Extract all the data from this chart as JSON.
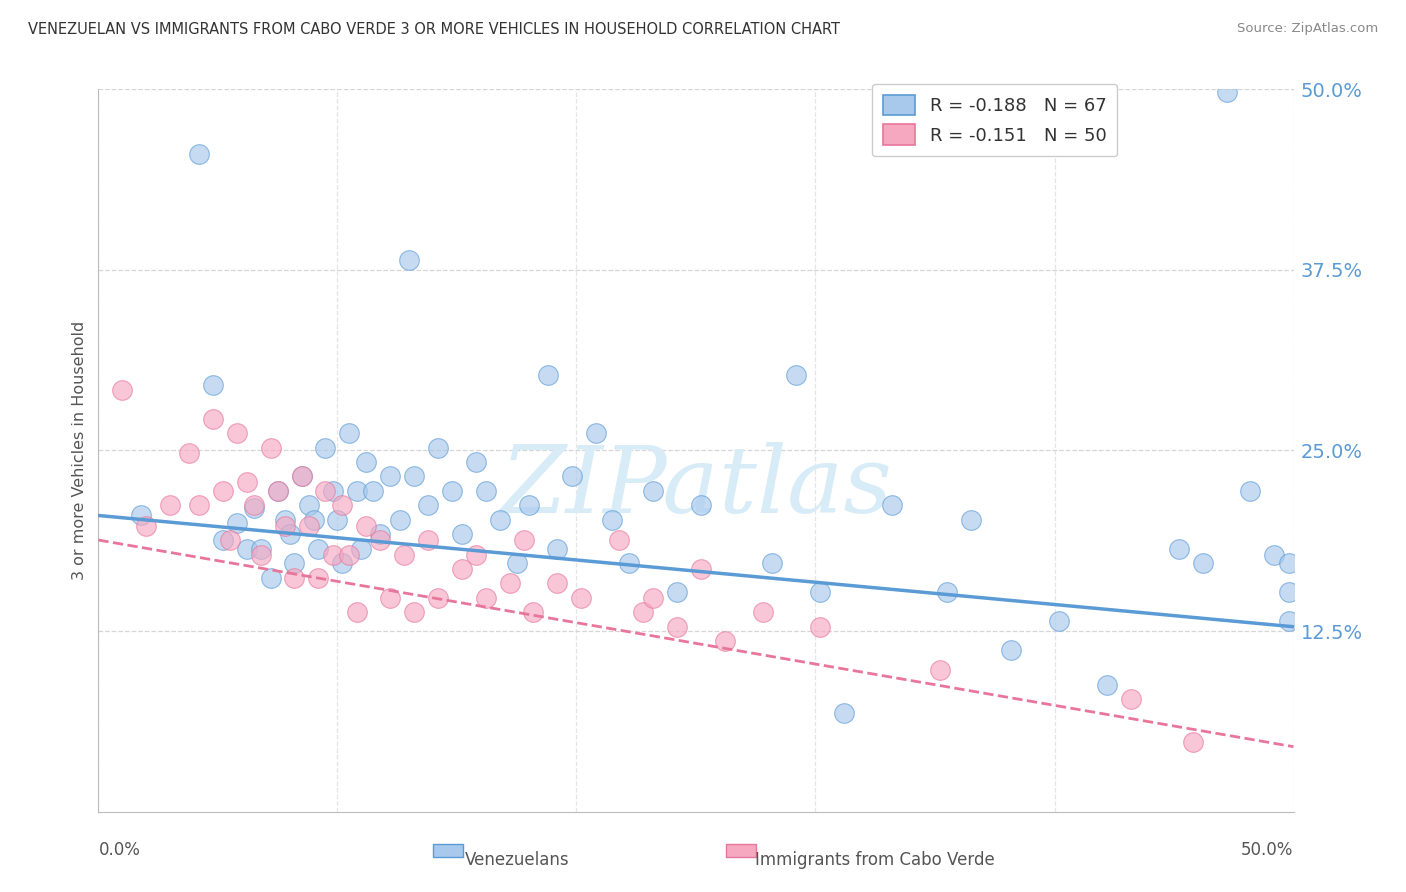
{
  "title": "VENEZUELAN VS IMMIGRANTS FROM CABO VERDE 3 OR MORE VEHICLES IN HOUSEHOLD CORRELATION CHART",
  "source": "Source: ZipAtlas.com",
  "ylabel": "3 or more Vehicles in Household",
  "legend_label1": "Venezuelans",
  "legend_label2": "Immigrants from Cabo Verde",
  "r1": -0.188,
  "n1": 67,
  "r2": -0.151,
  "n2": 50,
  "xmin": 0.0,
  "xmax": 0.5,
  "ymin": 0.0,
  "ymax": 0.5,
  "ytick_vals": [
    0.125,
    0.25,
    0.375,
    0.5
  ],
  "ytick_labels": [
    "12.5%",
    "25.0%",
    "37.5%",
    "50.0%"
  ],
  "color_blue": "#A8C8EC",
  "color_pink": "#F5A8C0",
  "line_blue": "#5B9BD5",
  "line_pink": "#E8769A",
  "watermark_color": "#D8ECF8",
  "blue_x": [
    0.018,
    0.042,
    0.048,
    0.052,
    0.058,
    0.062,
    0.065,
    0.068,
    0.072,
    0.075,
    0.078,
    0.08,
    0.082,
    0.085,
    0.088,
    0.09,
    0.092,
    0.095,
    0.098,
    0.1,
    0.102,
    0.105,
    0.108,
    0.11,
    0.112,
    0.115,
    0.118,
    0.122,
    0.126,
    0.13,
    0.132,
    0.138,
    0.142,
    0.148,
    0.152,
    0.158,
    0.162,
    0.168,
    0.175,
    0.18,
    0.188,
    0.192,
    0.198,
    0.208,
    0.215,
    0.222,
    0.232,
    0.242,
    0.252,
    0.282,
    0.292,
    0.302,
    0.312,
    0.332,
    0.355,
    0.365,
    0.382,
    0.402,
    0.422,
    0.452,
    0.462,
    0.472,
    0.482,
    0.492,
    0.498,
    0.498,
    0.498
  ],
  "blue_y": [
    0.205,
    0.455,
    0.295,
    0.188,
    0.2,
    0.182,
    0.21,
    0.182,
    0.162,
    0.222,
    0.202,
    0.192,
    0.172,
    0.232,
    0.212,
    0.202,
    0.182,
    0.252,
    0.222,
    0.202,
    0.172,
    0.262,
    0.222,
    0.182,
    0.242,
    0.222,
    0.192,
    0.232,
    0.202,
    0.382,
    0.232,
    0.212,
    0.252,
    0.222,
    0.192,
    0.242,
    0.222,
    0.202,
    0.172,
    0.212,
    0.302,
    0.182,
    0.232,
    0.262,
    0.202,
    0.172,
    0.222,
    0.152,
    0.212,
    0.172,
    0.302,
    0.152,
    0.068,
    0.212,
    0.152,
    0.202,
    0.112,
    0.132,
    0.088,
    0.182,
    0.172,
    0.498,
    0.222,
    0.178,
    0.152,
    0.172,
    0.132
  ],
  "pink_x": [
    0.01,
    0.02,
    0.03,
    0.038,
    0.042,
    0.048,
    0.052,
    0.055,
    0.058,
    0.062,
    0.065,
    0.068,
    0.072,
    0.075,
    0.078,
    0.082,
    0.085,
    0.088,
    0.092,
    0.095,
    0.098,
    0.102,
    0.105,
    0.108,
    0.112,
    0.118,
    0.122,
    0.128,
    0.132,
    0.138,
    0.142,
    0.152,
    0.158,
    0.162,
    0.172,
    0.178,
    0.182,
    0.192,
    0.202,
    0.218,
    0.228,
    0.232,
    0.242,
    0.252,
    0.262,
    0.278,
    0.302,
    0.352,
    0.432,
    0.458
  ],
  "pink_y": [
    0.292,
    0.198,
    0.212,
    0.248,
    0.212,
    0.272,
    0.222,
    0.188,
    0.262,
    0.228,
    0.212,
    0.178,
    0.252,
    0.222,
    0.198,
    0.162,
    0.232,
    0.198,
    0.162,
    0.222,
    0.178,
    0.212,
    0.178,
    0.138,
    0.198,
    0.188,
    0.148,
    0.178,
    0.138,
    0.188,
    0.148,
    0.168,
    0.178,
    0.148,
    0.158,
    0.188,
    0.138,
    0.158,
    0.148,
    0.188,
    0.138,
    0.148,
    0.128,
    0.168,
    0.118,
    0.138,
    0.128,
    0.098,
    0.078,
    0.048
  ],
  "blue_line_x0": 0.0,
  "blue_line_x1": 0.5,
  "blue_line_y0": 0.205,
  "blue_line_y1": 0.128,
  "pink_line_x0": 0.0,
  "pink_line_x1": 0.5,
  "pink_line_y0": 0.188,
  "pink_line_y1": 0.045,
  "grid_x_ticks": [
    0.0,
    0.1,
    0.2,
    0.3,
    0.4,
    0.5
  ]
}
